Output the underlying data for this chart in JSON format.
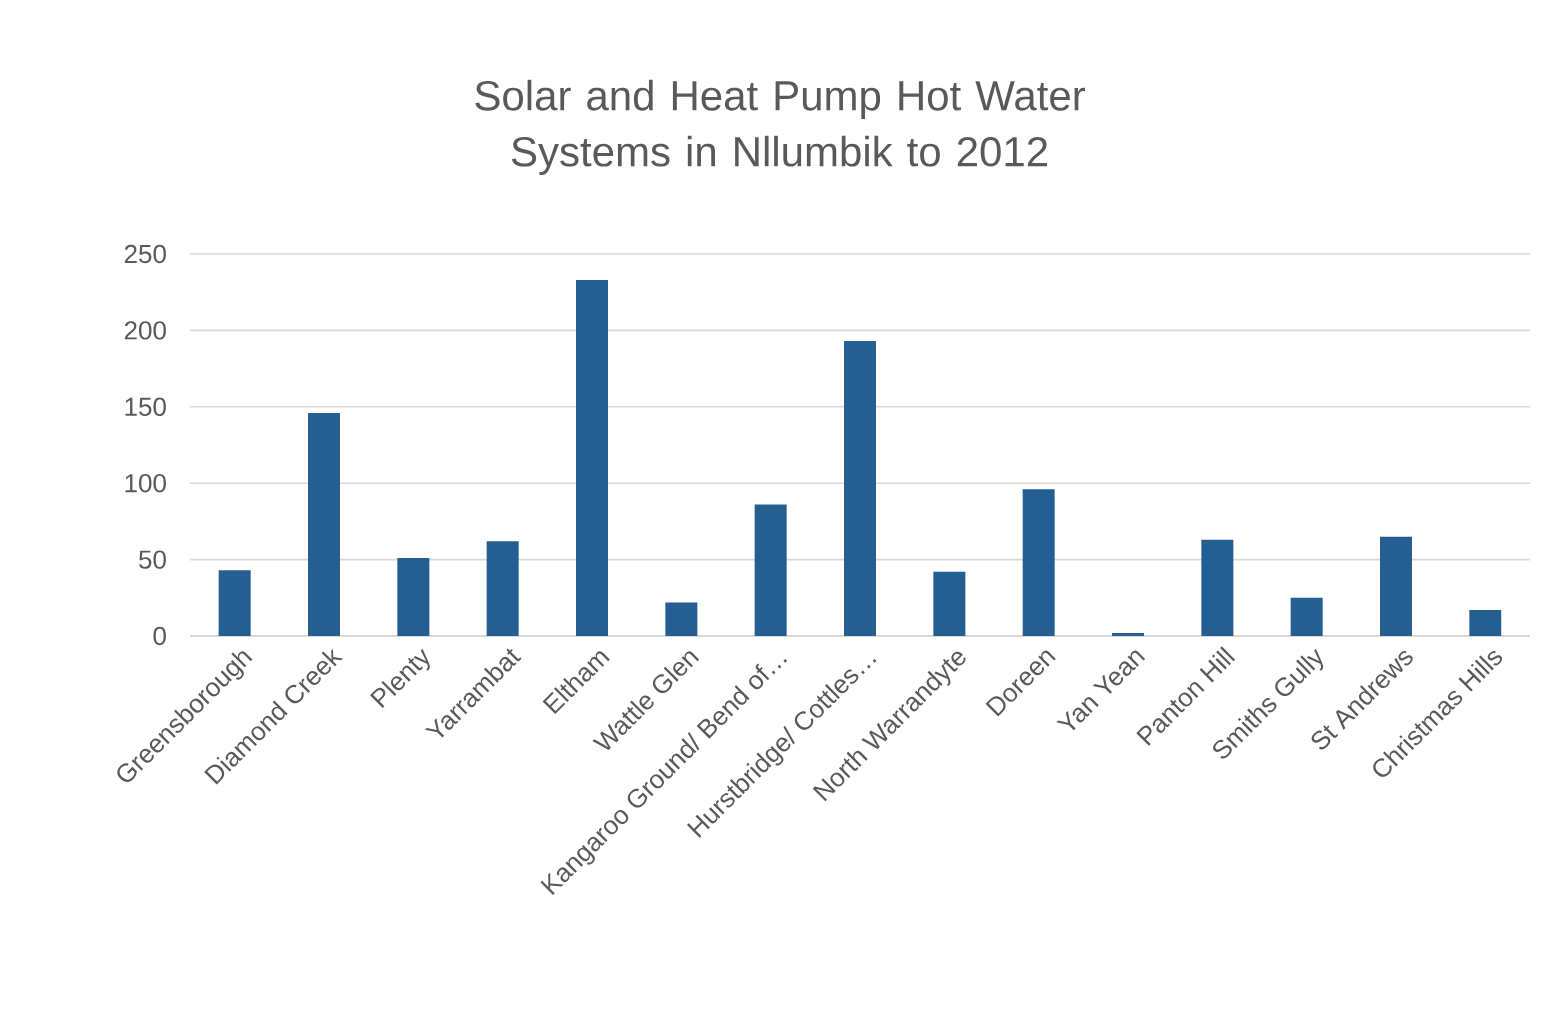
{
  "chart_data": {
    "type": "bar",
    "title": "Solar and Heat Pump Hot Water Systems in Nllumbik to 2012",
    "categories": [
      "Greensborough",
      "Diamond Creek",
      "Plenty",
      "Yarrambat",
      "Eltham",
      "Wattle Glen",
      "Kangaroo Ground/ Bend of…",
      "Hurstbridge/ Cottles…",
      "North Warrandyte",
      "Doreen",
      "Yan Yean",
      "Panton Hill",
      "Smiths Gully",
      "St Andrews",
      "Christmas Hills"
    ],
    "values": [
      43,
      146,
      51,
      62,
      233,
      22,
      86,
      193,
      42,
      96,
      2,
      63,
      25,
      65,
      17
    ],
    "color": "#255e91",
    "ylim": [
      0,
      250
    ],
    "yticks": [
      0,
      50,
      100,
      150,
      200,
      250
    ],
    "grid": "y"
  }
}
